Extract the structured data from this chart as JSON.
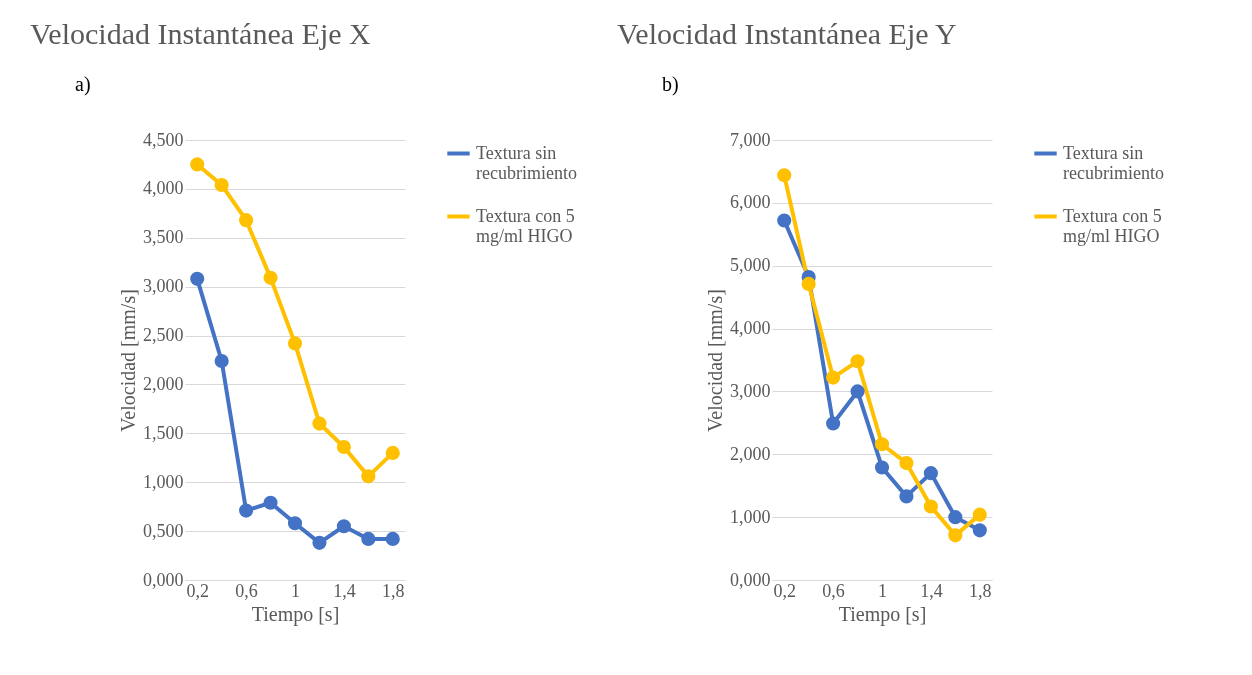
{
  "chart_data": [
    {
      "type": "line",
      "title": "Velocidad Instantánea Eje X",
      "annotations": [
        "a)"
      ],
      "xlabel": "Tiempo [s]",
      "ylabel": "Velocidad [mm/s]",
      "categories": [
        "0,2",
        null,
        "0,6",
        null,
        "1",
        null,
        "1,4",
        null,
        "1,8"
      ],
      "series": [
        {
          "name": "Textura sin recubrimiento",
          "color": "#4472c4",
          "values": [
            3.08,
            2.24,
            0.71,
            0.79,
            0.58,
            0.38,
            0.55,
            0.42,
            0.42
          ]
        },
        {
          "name": "Textura con 5 mg/ml HIGO",
          "color": "#ffc000",
          "values": [
            4.25,
            4.04,
            3.68,
            3.09,
            2.42,
            1.6,
            1.36,
            1.06,
            1.3
          ]
        }
      ],
      "ylim": [
        0,
        4.5
      ],
      "yticks": [
        {
          "value": 0,
          "label": "0,000"
        },
        {
          "value": 0.5,
          "label": "0,500"
        },
        {
          "value": 1,
          "label": "1,000"
        },
        {
          "value": 1.5,
          "label": "1,500"
        },
        {
          "value": 2,
          "label": "2,000"
        },
        {
          "value": 2.5,
          "label": "2,500"
        },
        {
          "value": 3,
          "label": "3,000"
        },
        {
          "value": 3.5,
          "label": "3,500"
        },
        {
          "value": 4,
          "label": "4,000"
        },
        {
          "value": 4.5,
          "label": "4,500"
        }
      ],
      "grid": "y",
      "legend": "right",
      "marker": "circle",
      "line_style": "solid"
    },
    {
      "type": "line",
      "title": "Velocidad Instantánea Eje Y",
      "annotations": [
        "b)"
      ],
      "xlabel": "Tiempo [s]",
      "ylabel": "Velocidad [mm/s]",
      "categories": [
        "0,2",
        null,
        "0,6",
        null,
        "1",
        null,
        "1,4",
        null,
        "1,8"
      ],
      "series": [
        {
          "name": "Textura sin recubrimiento",
          "color": "#4472c4",
          "values": [
            5.72,
            4.82,
            2.49,
            3.0,
            1.79,
            1.33,
            1.7,
            1.0,
            0.79
          ]
        },
        {
          "name": "Textura con 5 mg/ml HIGO",
          "color": "#ffc000",
          "values": [
            6.44,
            4.71,
            3.22,
            3.48,
            2.16,
            1.86,
            1.17,
            0.71,
            1.04
          ]
        }
      ],
      "ylim": [
        0,
        7
      ],
      "yticks": [
        {
          "value": 0,
          "label": "0,000"
        },
        {
          "value": 1,
          "label": "1,000"
        },
        {
          "value": 2,
          "label": "2,000"
        },
        {
          "value": 3,
          "label": "3,000"
        },
        {
          "value": 4,
          "label": "4,000"
        },
        {
          "value": 5,
          "label": "5,000"
        },
        {
          "value": 6,
          "label": "6,000"
        },
        {
          "value": 7,
          "label": "7,000"
        }
      ],
      "grid": "y",
      "legend": "right",
      "marker": "circle",
      "line_style": "solid"
    }
  ]
}
